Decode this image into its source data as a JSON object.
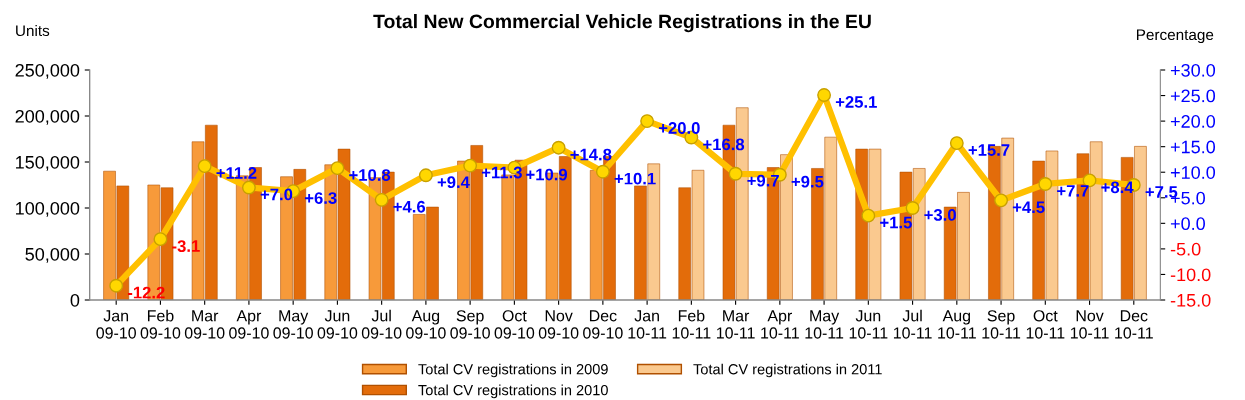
{
  "chart_data": {
    "type": "bar",
    "title": "Total New Commercial Vehicle Registrations in the EU",
    "ylabel": "Units",
    "y2label": "Percentage",
    "categories": [
      "Jan\n09-10",
      "Feb\n09-10",
      "Mar\n09-10",
      "Apr\n09-10",
      "May\n09-10",
      "Jun\n09-10",
      "Jul\n09-10",
      "Aug\n09-10",
      "Sep\n09-10",
      "Oct\n09-10",
      "Nov\n09-10",
      "Dec\n09-10",
      "Jan\n10-11",
      "Feb\n10-11",
      "Mar\n10-11",
      "Apr\n10-11",
      "May\n10-11",
      "Jun\n10-11",
      "Jul\n10-11",
      "Aug\n10-11",
      "Sep\n10-11",
      "Oct\n10-11",
      "Nov\n10-11",
      "Dec\n10-11"
    ],
    "series": [
      {
        "name": "Total CV registrations in 2009",
        "color": "#f79a3a",
        "values": [
          140000,
          125000,
          172000,
          135000,
          134000,
          147000,
          133000,
          93000,
          151000,
          136000,
          138000,
          141000,
          null,
          null,
          null,
          null,
          null,
          null,
          null,
          null,
          null,
          null,
          null,
          null
        ]
      },
      {
        "name": "Total CV registrations in 2010",
        "color": "#e36c0a",
        "values": [
          124000,
          122000,
          190000,
          144000,
          142000,
          164000,
          139000,
          101000,
          168000,
          152000,
          156000,
          156000,
          124000,
          122000,
          190000,
          144000,
          143000,
          164000,
          139000,
          101000,
          167000,
          151000,
          159000,
          155000
        ]
      },
      {
        "name": "Total CV registrations in 2011",
        "color": "#fac98f",
        "values": [
          null,
          null,
          null,
          null,
          null,
          null,
          null,
          null,
          null,
          null,
          null,
          null,
          148000,
          141000,
          209000,
          158000,
          177000,
          164000,
          143000,
          117000,
          176000,
          162000,
          172000,
          167000
        ]
      },
      {
        "type": "line",
        "axis": "y2",
        "color": "#ffc000",
        "marker": "circle",
        "values": [
          -12.2,
          -3.1,
          11.2,
          7.0,
          6.3,
          10.8,
          4.6,
          9.4,
          11.3,
          10.9,
          14.8,
          10.1,
          20.0,
          16.8,
          9.7,
          9.5,
          25.1,
          1.5,
          3.0,
          15.7,
          4.5,
          7.7,
          8.4,
          7.5
        ],
        "value_labels": [
          "-12.2",
          "-3.1",
          "+11.2",
          "+7.0",
          "+6.3",
          "+10.8",
          "+4.6",
          "+9.4",
          "+11.3",
          "+10.9",
          "+14.8",
          "+10.1",
          "+20.0",
          "+16.8",
          "+9.7",
          "+9.5",
          "+25.1",
          "+1.5",
          "+3.0",
          "+15.7",
          "+4.5",
          "+7.7",
          "+8.4",
          "+7.5"
        ]
      }
    ],
    "ylim": [
      0,
      250000
    ],
    "yticks": [
      {
        "value": 0,
        "label": "0"
      },
      {
        "value": 50000,
        "label": "50,000"
      },
      {
        "value": 100000,
        "label": "100,000"
      },
      {
        "value": 150000,
        "label": "150,000"
      },
      {
        "value": 200000,
        "label": "200,000"
      },
      {
        "value": 250000,
        "label": "250,000"
      }
    ],
    "y2lim": [
      -15,
      30
    ],
    "y2ticks": [
      {
        "value": -15,
        "label": "-15.0"
      },
      {
        "value": -10,
        "label": "-10.0"
      },
      {
        "value": -5,
        "label": "-5.0"
      },
      {
        "value": 0,
        "label": "+0.0"
      },
      {
        "value": 5,
        "label": "+5.0"
      },
      {
        "value": 10,
        "label": "+10.0"
      },
      {
        "value": 15,
        "label": "+15.0"
      },
      {
        "value": 20,
        "label": "+20.0"
      },
      {
        "value": 25,
        "label": "+25.0"
      },
      {
        "value": 30,
        "label": "+30.0"
      }
    ],
    "grid": false,
    "legend": "bottom"
  }
}
